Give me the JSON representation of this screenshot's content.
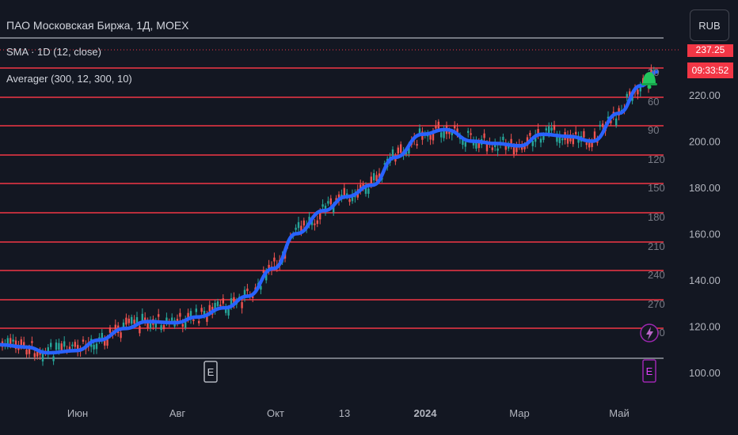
{
  "header": {
    "title": "ПАО Московская Биржа, 1Д, MOEX",
    "indicator_sma": "SMA · 1D (12, close)",
    "indicator_averager": "Averager (300, 12, 300, 10)"
  },
  "currency_button": "RUB",
  "last_price_partial": "237.25",
  "countdown": "09:33:52",
  "colors": {
    "background": "#131722",
    "level_line": "#f23645",
    "sma_line": "#2962ff",
    "candle_up": "#26a69a",
    "candle_down": "#ef5350",
    "alert_bell": "#22c55e",
    "event_marker": "#9c27b0"
  },
  "level_labels": [
    "30",
    "60",
    "90",
    "120",
    "150",
    "180",
    "210",
    "240",
    "270",
    "300"
  ],
  "event_markers": {
    "earnings_letter": "E",
    "flash_icon": "lightning-icon"
  },
  "chart_data": {
    "type": "candlestick",
    "title": "ПАО Московская Биржа, 1Д, MOEX",
    "x_tick_labels": [
      "Июн",
      "Авг",
      "Окт",
      "13",
      "2024",
      "Мар",
      "Май"
    ],
    "y_tick_labels": [
      "220.00",
      "200.00",
      "180.00",
      "160.00",
      "140.00",
      "120.00",
      "100.00"
    ],
    "ylim": [
      95,
      232
    ],
    "grid": false,
    "sma_series": {
      "name": "SMA · 1D (12, close)",
      "x": [
        "2023-04-15",
        "2023-05-01",
        "2023-05-15",
        "2023-06-01",
        "2023-06-15",
        "2023-07-01",
        "2023-07-15",
        "2023-08-01",
        "2023-08-15",
        "2023-09-01",
        "2023-09-15",
        "2023-10-01",
        "2023-10-15",
        "2023-11-01",
        "2023-11-15",
        "2023-12-01",
        "2023-12-15",
        "2024-01-01",
        "2024-01-15",
        "2024-02-01",
        "2024-02-15",
        "2024-03-01",
        "2024-03-15",
        "2024-04-01",
        "2024-04-15",
        "2024-05-01",
        "2024-05-15",
        "2024-05-25"
      ],
      "values": [
        112,
        111,
        108.5,
        109.5,
        114,
        119,
        122,
        121.5,
        124,
        128,
        133,
        145,
        160,
        170,
        176,
        181,
        193,
        203,
        205,
        200,
        199,
        198,
        203,
        202,
        200,
        212,
        224,
        230
      ]
    }
  }
}
